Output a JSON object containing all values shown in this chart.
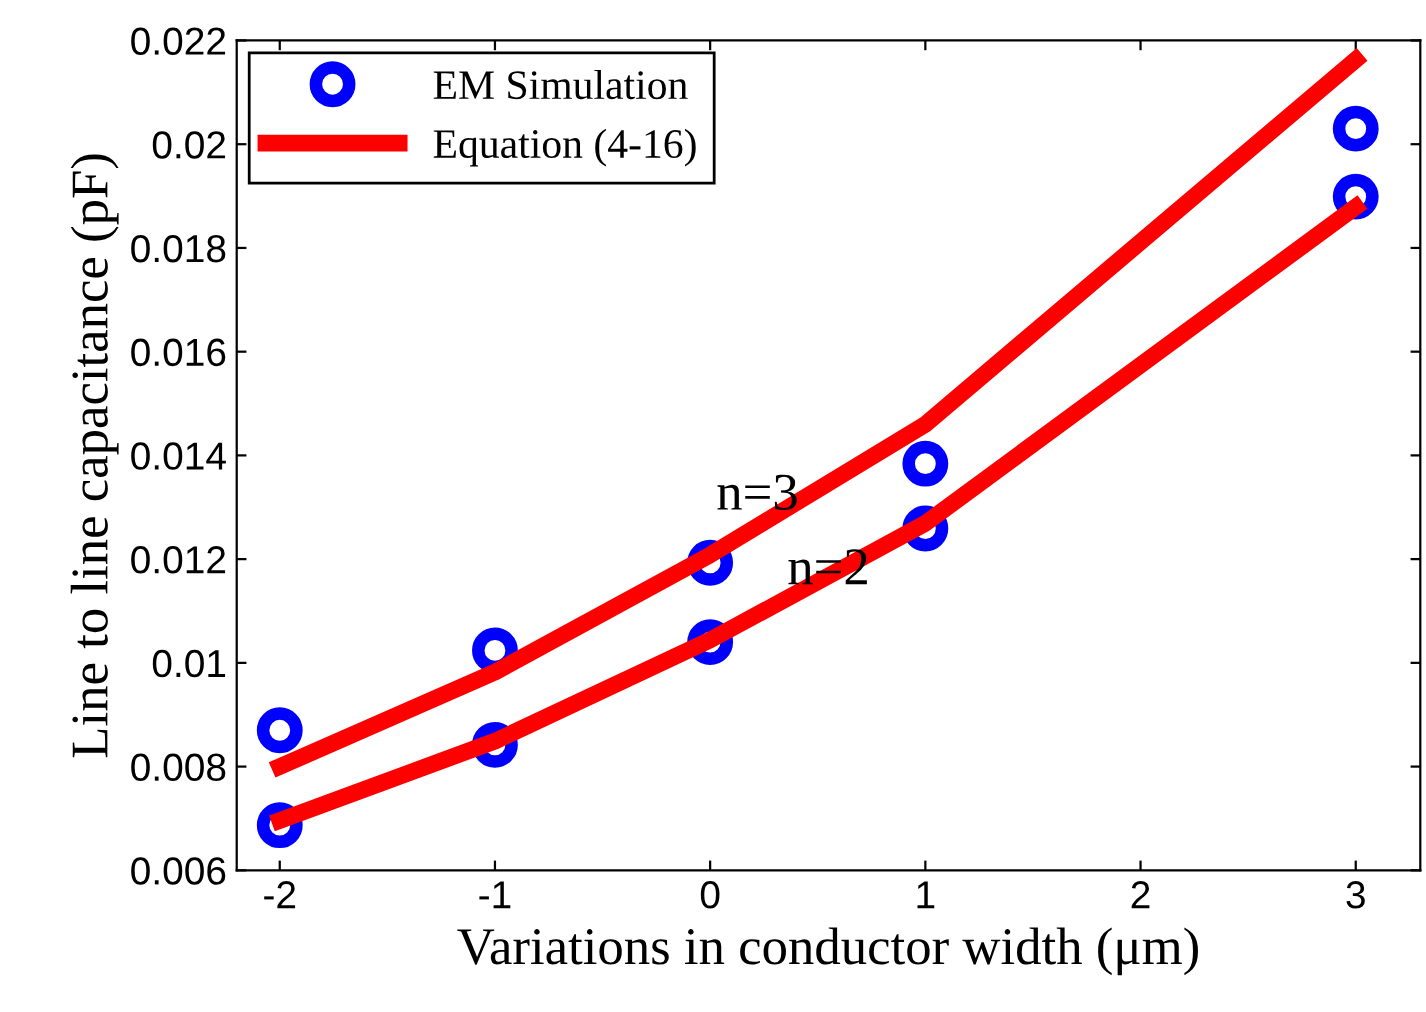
{
  "chart_data": {
    "type": "line",
    "xlabel": "Variations in conductor width (μm)",
    "ylabel": "Line to line capacitance (pF)",
    "xlim": [
      -2.2,
      3.3
    ],
    "xticks": [
      -2,
      -1,
      0,
      1,
      2,
      3
    ],
    "ylim": [
      0.006,
      0.022
    ],
    "yticks": [
      0.006,
      0.008,
      0.01,
      0.012,
      0.014,
      0.016,
      0.018,
      0.02,
      0.022
    ],
    "grid": false,
    "legend": "top left",
    "series": [
      {
        "name": "EM Simulation",
        "type": "scatter",
        "marker": "circle",
        "color": "#0000ff",
        "x": [
          -2,
          -1,
          0,
          1,
          3
        ],
        "values": [
          0.00687,
          0.00842,
          0.0104,
          0.01259,
          0.01899
        ]
      },
      {
        "type": "scatter",
        "marker": "circle",
        "color": "#0000ff",
        "x": [
          -2,
          -1,
          0,
          1,
          3
        ],
        "values": [
          0.0087,
          0.01024,
          0.01193,
          0.01384,
          0.0203
        ]
      },
      {
        "name": "Equation (4-16)",
        "marker": "none",
        "line_style": "solid",
        "color": "#ff0000",
        "x": [
          -2,
          -1,
          0,
          1,
          3
        ],
        "values": [
          0.00696,
          0.00849,
          0.01044,
          0.01269,
          0.01879
        ]
      },
      {
        "marker": "none",
        "line_style": "solid",
        "color": "#ff0000",
        "x": [
          -2,
          -1,
          0,
          1,
          3
        ],
        "values": [
          0.008,
          0.00982,
          0.01208,
          0.0146,
          0.02163
        ]
      }
    ],
    "annotations": [
      "n=3",
      "n=2"
    ]
  }
}
